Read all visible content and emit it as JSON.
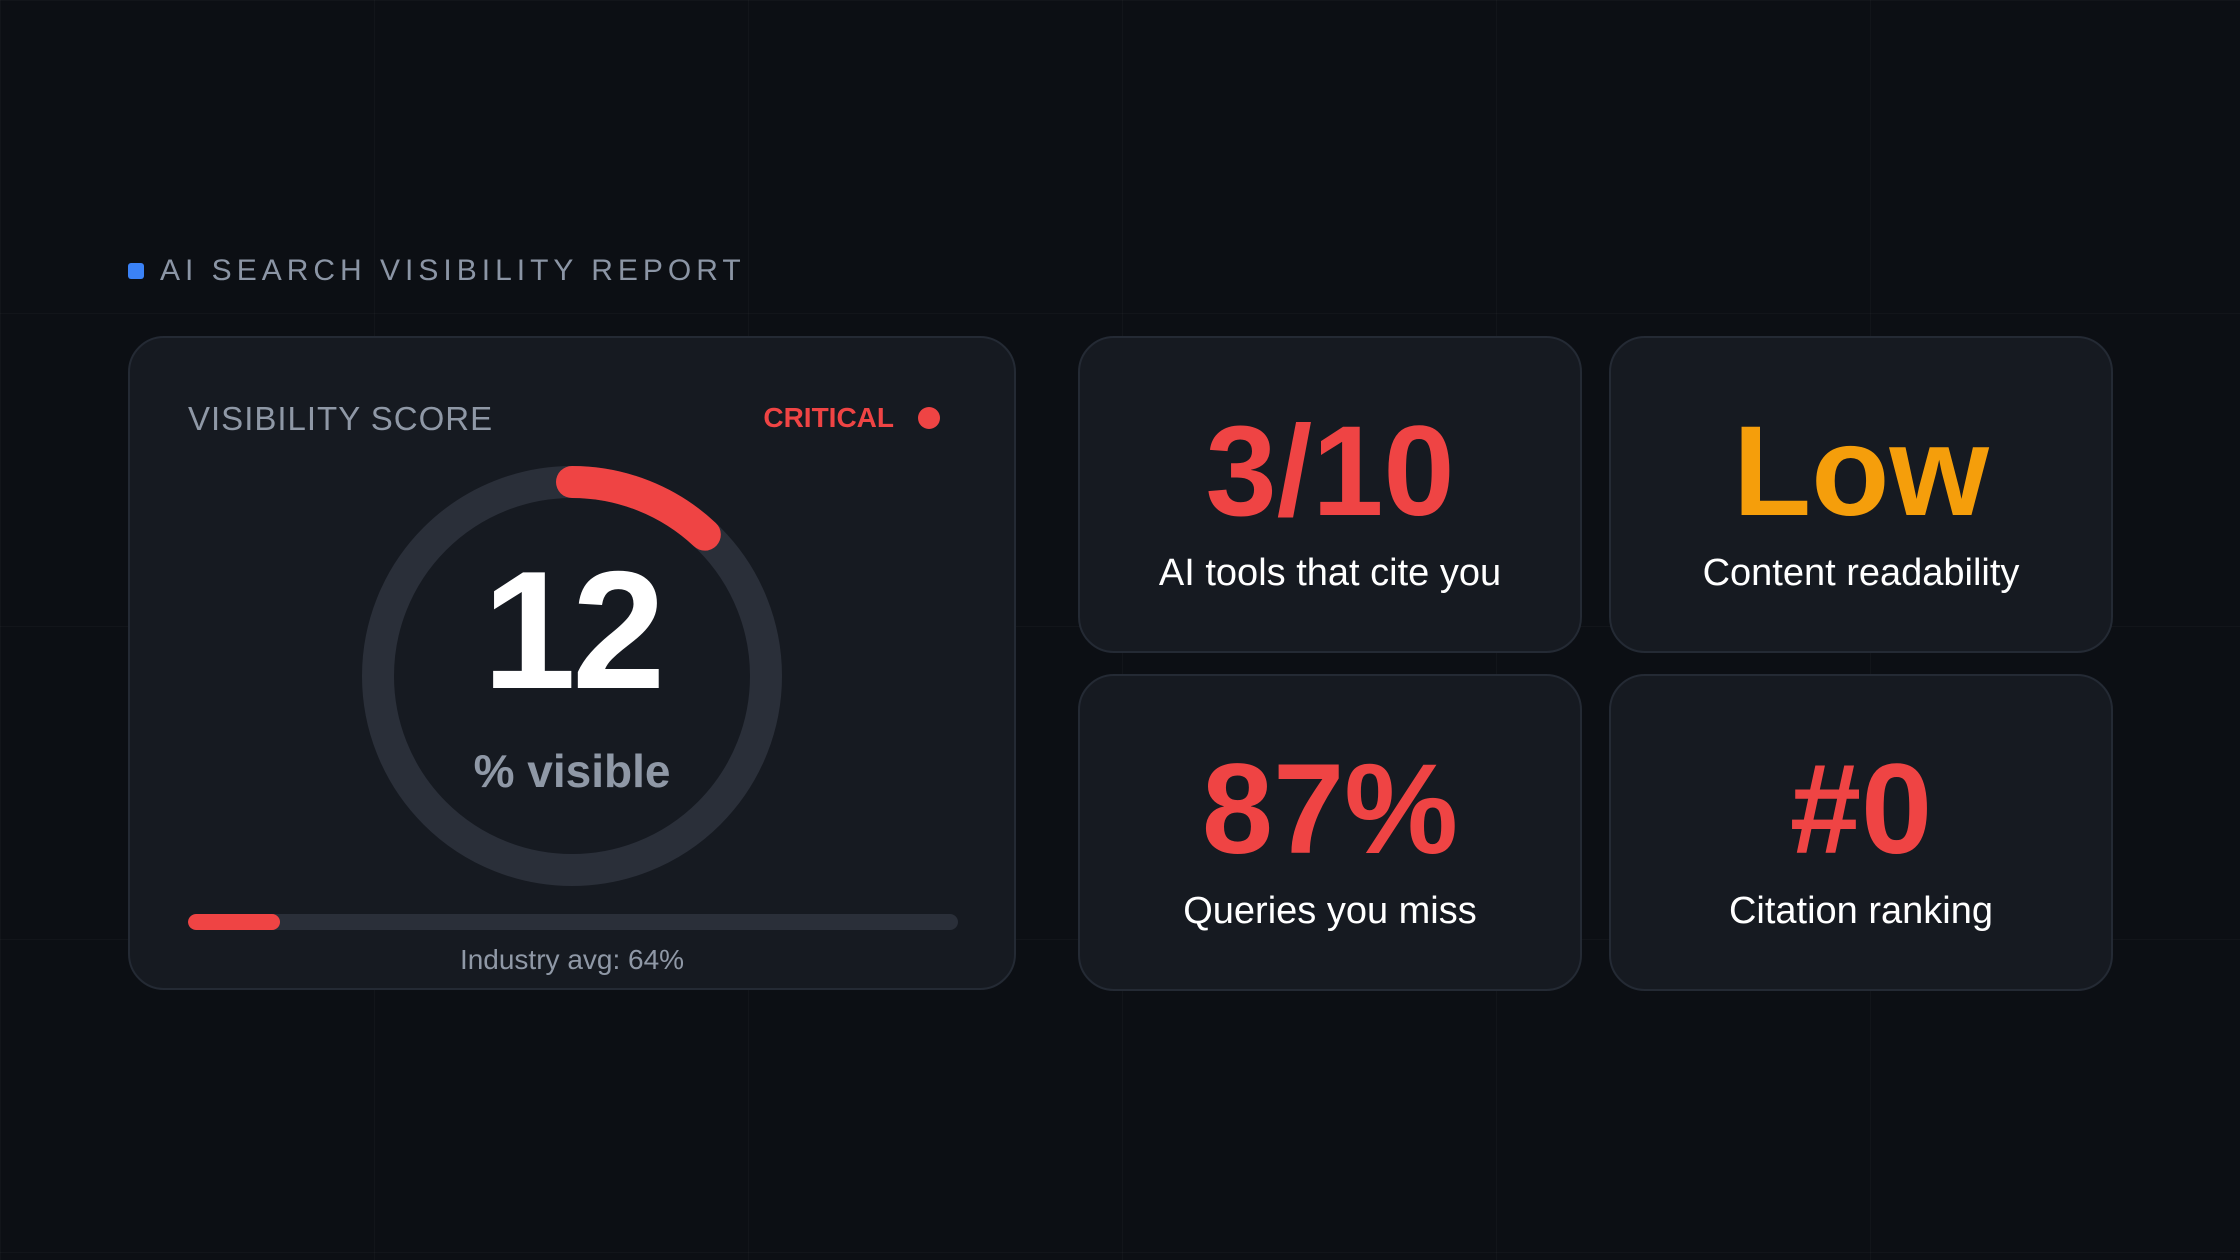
{
  "header": {
    "title": "AI SEARCH VISIBILITY REPORT",
    "accent_color": "#3b82f6"
  },
  "score_card": {
    "label": "VISIBILITY SCORE",
    "status": "CRITICAL",
    "status_color": "#ef4444",
    "value": "12",
    "percent": 12,
    "unit": "% visible",
    "industry_avg": "Industry avg: 64%"
  },
  "stats": [
    {
      "value": "3/10",
      "label": "AI tools that cite you",
      "color": "#ef4444"
    },
    {
      "value": "Low",
      "label": "Content readability",
      "color": "#f59e0b"
    },
    {
      "value": "87%",
      "label": "Queries you miss",
      "color": "#ef4444"
    },
    {
      "value": "#0",
      "label": "Citation ranking",
      "color": "#ef4444"
    }
  ]
}
